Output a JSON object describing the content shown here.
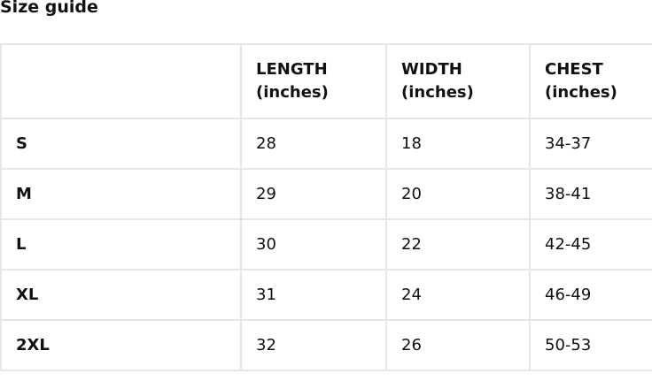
{
  "title": "Size guide",
  "headers": [
    "",
    "LENGTH (inches)",
    "WIDTH (inches)",
    "CHEST (inches)"
  ],
  "rows": [
    [
      "S",
      "28",
      "18",
      "34-37"
    ],
    [
      "M",
      "29",
      "20",
      "38-41"
    ],
    [
      "L",
      "30",
      "22",
      "42-45"
    ],
    [
      "XL",
      "31",
      "24",
      "46-49"
    ],
    [
      "2XL",
      "32",
      "26",
      "50-53"
    ]
  ]
}
